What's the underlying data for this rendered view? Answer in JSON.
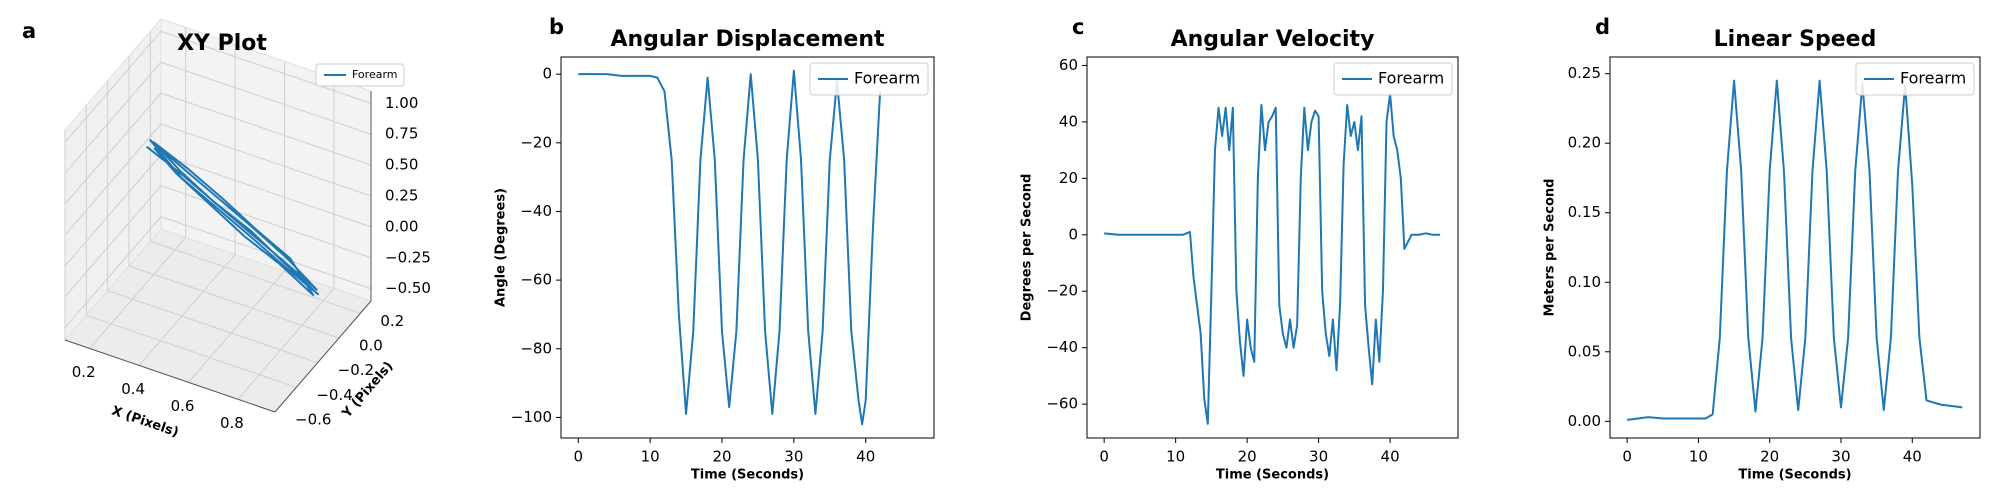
{
  "chart_data": [
    {
      "type": "line3d",
      "panel_label": "a",
      "title": "XY Plot",
      "xlabel": "X (Pixels)",
      "ylabel": "Y (Pixels)",
      "series": [
        {
          "name": "Forearm",
          "color": "#1f77b4",
          "x": [
            0.15,
            0.3,
            0.45,
            0.6,
            0.75,
            0.9,
            0.76,
            0.6,
            0.45,
            0.3,
            0.16,
            0.31,
            0.46,
            0.61,
            0.76,
            0.89,
            0.74,
            0.59,
            0.44,
            0.29,
            0.17,
            0.32,
            0.47,
            0.62,
            0.77,
            0.88,
            0.73,
            0.58,
            0.43,
            0.28,
            0.18
          ],
          "y": [
            0.05,
            0.03,
            0.0,
            -0.02,
            -0.05,
            -0.08,
            -0.06,
            -0.03,
            0.0,
            0.03,
            0.06,
            0.04,
            0.01,
            -0.02,
            -0.04,
            -0.07,
            -0.05,
            -0.02,
            0.01,
            0.04,
            0.07,
            0.04,
            0.02,
            -0.01,
            -0.04,
            -0.08,
            -0.05,
            -0.03,
            0.0,
            0.03,
            0.05
          ],
          "z": [
            0.35,
            0.25,
            0.15,
            0.05,
            -0.08,
            -0.2,
            -0.1,
            0.02,
            0.12,
            0.22,
            0.4,
            0.28,
            0.18,
            0.08,
            -0.05,
            -0.18,
            -0.06,
            0.04,
            0.14,
            0.26,
            0.38,
            0.3,
            0.18,
            0.06,
            -0.04,
            -0.22,
            -0.1,
            0.0,
            0.12,
            0.24,
            0.36
          ]
        }
      ],
      "xlim": [
        0.1,
        0.95
      ],
      "ylim": [
        -0.6,
        0.3
      ],
      "zlim": [
        -0.6,
        1.1
      ],
      "xticks": [
        0.2,
        0.4,
        0.6,
        0.8
      ],
      "yticks": [
        {
          "value": -0.6,
          "label": "−0.6"
        },
        {
          "value": -0.4,
          "label": "−0.4"
        },
        {
          "value": -0.2,
          "label": "−0.2"
        },
        {
          "value": 0,
          "label": "0.0"
        },
        0.2
      ],
      "zticks": [
        {
          "value": -0.5,
          "label": "−0.50"
        },
        {
          "value": -0.25,
          "label": "−0.25"
        },
        {
          "value": 0,
          "label": "0.00"
        },
        0.25,
        {
          "value": 0.5,
          "label": "0.50"
        },
        0.75,
        {
          "value": 1,
          "label": "1.00"
        }
      ],
      "legend": "upper right"
    },
    {
      "type": "line",
      "panel_label": "b",
      "title": "Angular Displacement",
      "xlabel": "Time (Seconds)",
      "ylabel": "Angle (Degrees)",
      "x": [
        0,
        2,
        4,
        6,
        8,
        10,
        11,
        12,
        13,
        14,
        15,
        16,
        17,
        18,
        19,
        20,
        21,
        22,
        23,
        24,
        25,
        26,
        27,
        28,
        29,
        30,
        31,
        32,
        33,
        34,
        35,
        36,
        37,
        38,
        39,
        39.5,
        40,
        41,
        42
      ],
      "series": [
        {
          "name": "Forearm",
          "color": "#1f77b4",
          "values": [
            0,
            0,
            0,
            -0.5,
            -0.5,
            -0.5,
            -1,
            -5,
            -25,
            -70,
            -99,
            -75,
            -25,
            -1,
            -25,
            -75,
            -97,
            -75,
            -25,
            0,
            -25,
            -75,
            -99,
            -75,
            -25,
            1,
            -25,
            -75,
            -99,
            -75,
            -25,
            -2,
            -25,
            -75,
            -95,
            -102,
            -95,
            -45,
            -5
          ]
        }
      ],
      "xlim": [
        -2.4,
        49.5
      ],
      "ylim": [
        -106,
        5
      ],
      "xticks": [
        0,
        10,
        20,
        30,
        40
      ],
      "yticks": [
        {
          "value": -100,
          "label": "−100"
        },
        {
          "value": -80,
          "label": "−80"
        },
        {
          "value": -60,
          "label": "−60"
        },
        {
          "value": -40,
          "label": "−40"
        },
        {
          "value": -20,
          "label": "−20"
        },
        0
      ],
      "legend": "upper right"
    },
    {
      "type": "line",
      "panel_label": "c",
      "title": "Angular Velocity",
      "xlabel": "Time (Seconds)",
      "ylabel": "Degrees per Second",
      "x": [
        0,
        2,
        4,
        6,
        8,
        10,
        11,
        12,
        12.5,
        13,
        13.5,
        14,
        14.5,
        15,
        15.5,
        16,
        16.5,
        17,
        17.5,
        18,
        18.5,
        19,
        19.5,
        20,
        20.5,
        21,
        21.5,
        22,
        22.5,
        23,
        23.5,
        24,
        24.5,
        25,
        25.5,
        26,
        26.5,
        27,
        27.5,
        28,
        28.5,
        29,
        29.5,
        30,
        30.5,
        31,
        31.5,
        32,
        32.5,
        33,
        33.5,
        34,
        34.5,
        35,
        35.5,
        36,
        36.5,
        37,
        37.5,
        38,
        38.5,
        39,
        39.5,
        40,
        40.5,
        41,
        41.5,
        42,
        43,
        44,
        45,
        46,
        47
      ],
      "series": [
        {
          "name": "Forearm",
          "color": "#1f77b4",
          "values": [
            0.5,
            0,
            0,
            0,
            0,
            0,
            0,
            1,
            -15,
            -25,
            -35,
            -58,
            -67,
            -20,
            30,
            45,
            35,
            45,
            30,
            45,
            -20,
            -38,
            -50,
            -30,
            -40,
            -45,
            20,
            46,
            30,
            40,
            42,
            45,
            -25,
            -35,
            -40,
            -30,
            -40,
            -32,
            20,
            45,
            30,
            40,
            44,
            42,
            -20,
            -35,
            -43,
            -30,
            -48,
            -25,
            25,
            46,
            35,
            40,
            30,
            42,
            -25,
            -40,
            -53,
            -30,
            -45,
            -20,
            40,
            50,
            35,
            30,
            20,
            -5,
            0,
            0,
            0.5,
            0,
            0
          ]
        }
      ],
      "xlim": [
        -2.4,
        49.5
      ],
      "ylim": [
        -72,
        63
      ],
      "xticks": [
        0,
        10,
        20,
        30,
        40
      ],
      "yticks": [
        {
          "value": -60,
          "label": "−60"
        },
        {
          "value": -40,
          "label": "−40"
        },
        {
          "value": -20,
          "label": "−20"
        },
        0,
        20,
        40,
        60
      ],
      "legend": "upper right"
    },
    {
      "type": "line",
      "panel_label": "d",
      "title": "Linear Speed",
      "xlabel": "Time (Seconds)",
      "ylabel": "Meters per Second",
      "x": [
        0,
        3,
        5,
        8,
        11,
        12,
        13,
        14,
        15,
        16,
        17,
        18,
        19,
        20,
        21,
        22,
        23,
        24,
        25,
        26,
        27,
        28,
        29,
        30,
        31,
        32,
        33,
        34,
        35,
        36,
        37,
        38,
        39,
        40,
        41,
        42,
        44,
        47
      ],
      "series": [
        {
          "name": "Forearm",
          "color": "#1f77b4",
          "values": [
            0.001,
            0.003,
            0.002,
            0.002,
            0.002,
            0.005,
            0.06,
            0.18,
            0.245,
            0.18,
            0.06,
            0.007,
            0.06,
            0.18,
            0.245,
            0.18,
            0.06,
            0.008,
            0.06,
            0.18,
            0.245,
            0.18,
            0.06,
            0.01,
            0.06,
            0.18,
            0.243,
            0.18,
            0.06,
            0.008,
            0.06,
            0.18,
            0.242,
            0.17,
            0.06,
            0.015,
            0.012,
            0.01
          ]
        }
      ],
      "xlim": [
        -2.4,
        49.5
      ],
      "ylim": [
        -0.012,
        0.262
      ],
      "xticks": [
        0,
        10,
        20,
        30,
        40
      ],
      "yticks": [
        {
          "value": 0,
          "label": "0.00"
        },
        0.05,
        {
          "value": 0.1,
          "label": "0.10"
        },
        0.15,
        {
          "value": 0.2,
          "label": "0.20"
        },
        0.25
      ],
      "legend": "upper right"
    }
  ]
}
